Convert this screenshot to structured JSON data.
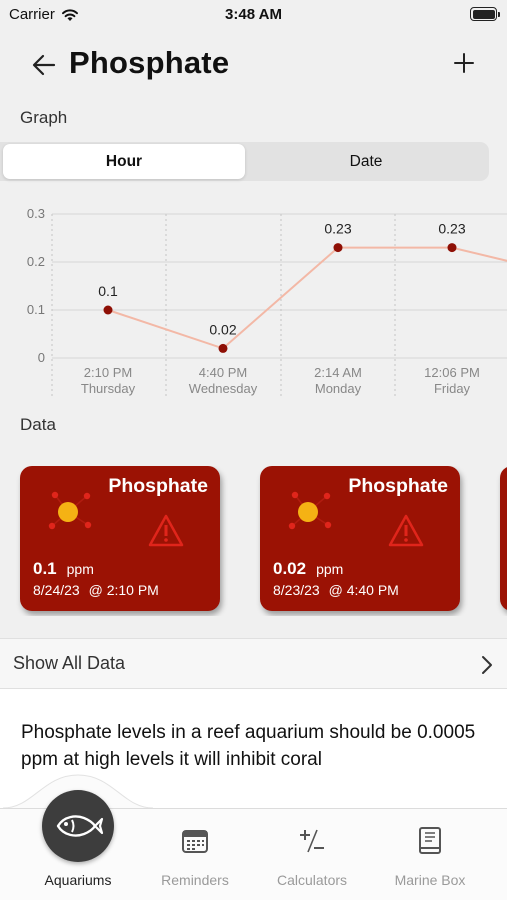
{
  "status_bar": {
    "carrier": "Carrier",
    "time": "3:48 AM"
  },
  "nav": {
    "title": "Phosphate"
  },
  "sections": {
    "graph": "Graph",
    "data": "Data"
  },
  "segmented": {
    "options": [
      "Hour",
      "Date"
    ],
    "selected": "Hour"
  },
  "chart_data": {
    "type": "line",
    "categories": [
      {
        "time": "2:10 PM",
        "day": "Thursday"
      },
      {
        "time": "4:40 PM",
        "day": "Wednesday"
      },
      {
        "time": "2:14 AM",
        "day": "Monday"
      },
      {
        "time": "12:06 PM",
        "day": "Friday"
      }
    ],
    "values": [
      0.1,
      0.02,
      0.23,
      0.23
    ],
    "point_labels": [
      "0.1",
      "0.02",
      "0.23",
      "0.23"
    ],
    "trailing_value": 0.2,
    "yticks": [
      "0.3",
      "0.2",
      "0.1",
      "0"
    ],
    "ylim": [
      0,
      0.3
    ],
    "grid": true,
    "line_color": "#f3b8a6",
    "point_color": "#8e0f05"
  },
  "cards": [
    {
      "title": "Phosphate",
      "value": "0.1",
      "unit": "ppm",
      "date": "8/24/23",
      "time_label": "@ 2:10 PM"
    },
    {
      "title": "Phosphate",
      "value": "0.02",
      "unit": "ppm",
      "date": "8/23/23",
      "time_label": "@ 4:40 PM"
    }
  ],
  "card_color": "#9b1204",
  "show_all": {
    "label": "Show All Data"
  },
  "description": "Phosphate levels in a reef aquarium should be 0.0005 ppm at high levels it will inhibit coral",
  "tabs": [
    {
      "label": "Aquariums",
      "icon": "fish-icon",
      "active": true
    },
    {
      "label": "Reminders",
      "icon": "calendar-icon",
      "active": false
    },
    {
      "label": "Calculators",
      "icon": "plus-minus-icon",
      "active": false
    },
    {
      "label": "Marine Box",
      "icon": "book-icon",
      "active": false
    }
  ]
}
